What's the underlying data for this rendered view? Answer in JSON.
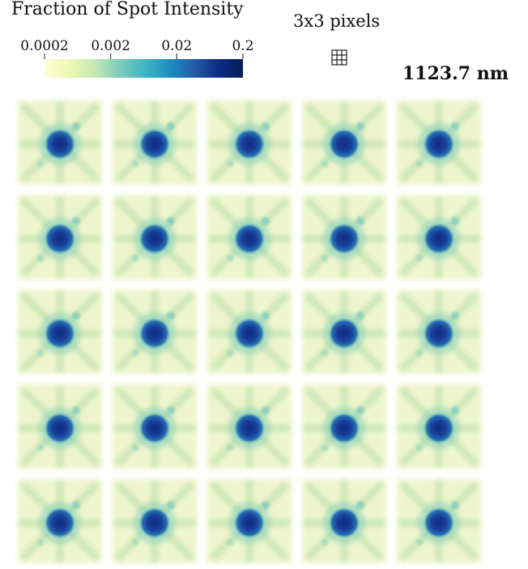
{
  "colorbar": {
    "title": "Fraction of Spot Intensity",
    "lim": [
      0.0002,
      0.2
    ],
    "ticks": [
      0.0002,
      0.002,
      0.02,
      0.2
    ],
    "log": true,
    "colors": [
      "#ffffd9",
      "#edf8b1",
      "#c7e9b4",
      "#7fcdbb",
      "#41b6c4",
      "#1d91c0",
      "#225ea8",
      "#0c2c84",
      "#081d58"
    ]
  },
  "pixel_label": "3x3 pixels",
  "wavelength": "1123.7 nm"
}
